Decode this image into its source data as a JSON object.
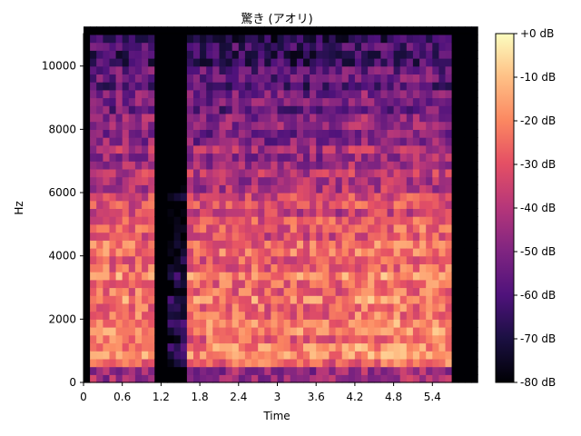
{
  "chart_data": {
    "type": "heatmap",
    "title": "驚き (アオリ)",
    "xlabel": "Time",
    "ylabel": "Hz",
    "xlim": [
      0,
      6.0
    ],
    "ylim": [
      0,
      11025
    ],
    "xticks": [
      0,
      0.6,
      1.2,
      1.8,
      2.4,
      3,
      3.6,
      4.2,
      4.8,
      5.4
    ],
    "xtick_labels": [
      "0",
      "0.6",
      "1.2",
      "1.8",
      "2.4",
      "3",
      "3.6",
      "4.2",
      "4.8",
      "5.4"
    ],
    "yticks": [
      0,
      2000,
      4000,
      6000,
      8000,
      10000
    ],
    "ytick_labels": [
      "0",
      "2000",
      "4000",
      "6000",
      "8000",
      "10000"
    ],
    "colorbar": {
      "colormap": "magma",
      "range_db": [
        -80,
        0
      ],
      "ticks": [
        0,
        -10,
        -20,
        -30,
        -40,
        -50,
        -60,
        -70,
        -80
      ],
      "tick_labels": [
        "+0 dB",
        "-10 dB",
        "-20 dB",
        "-30 dB",
        "-40 dB",
        "-50 dB",
        "-60 dB",
        "-70 dB",
        "-80 dB"
      ]
    },
    "time_bin_s": 0.1,
    "freq_bin_hz": 250,
    "floor_db": -80,
    "segments": [
      {
        "t0": 0.1,
        "t1": 1.1,
        "peak_db": -8,
        "max_freq_hz": 10800
      },
      {
        "t0": 1.35,
        "t1": 1.65,
        "peak_db": -55,
        "max_freq_hz": 10500
      },
      {
        "t0": 1.65,
        "t1": 4.0,
        "peak_db": -10,
        "max_freq_hz": 10800
      },
      {
        "t0": 4.0,
        "t1": 5.7,
        "peak_db": -7,
        "max_freq_hz": 10900
      }
    ]
  }
}
